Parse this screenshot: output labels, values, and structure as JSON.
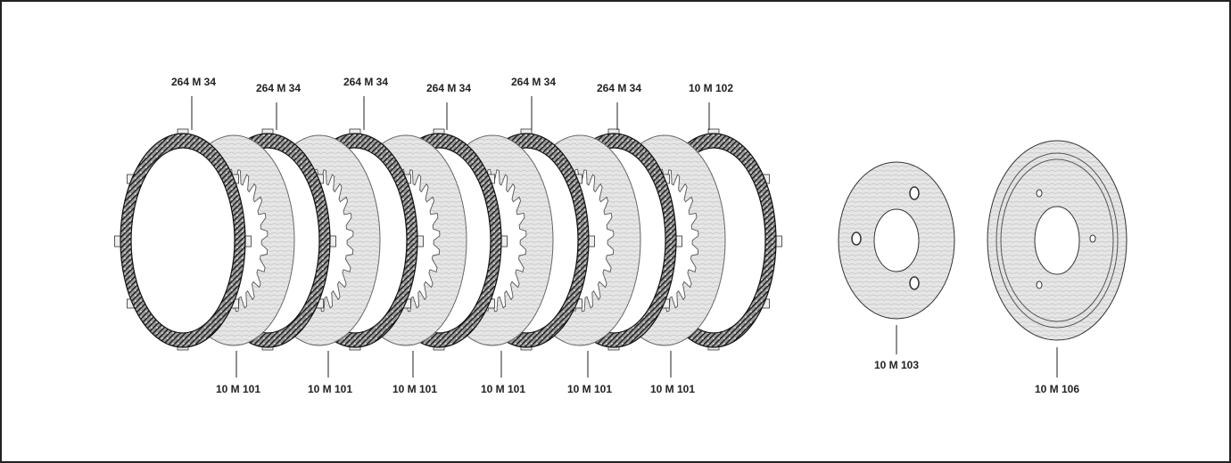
{
  "top_callouts": [
    "264 M 34",
    "264 M 34",
    "264 M 34",
    "264 M 34",
    "264 M 34",
    "264 M 34",
    "10 M 102"
  ],
  "bottom_callouts": [
    "10 M 101",
    "10 M 101",
    "10 M 101",
    "10 M 101",
    "10 M 101",
    "10 M 101"
  ],
  "right_callouts": [
    "10 M 103",
    "10 M 106"
  ]
}
